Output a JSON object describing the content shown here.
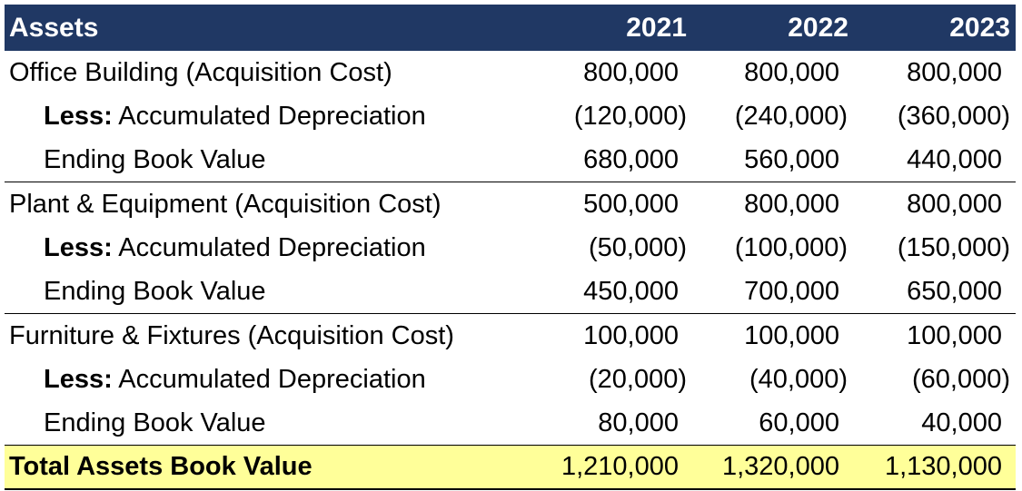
{
  "header": {
    "title": "Assets",
    "years": [
      "2021",
      "2022",
      "2023"
    ]
  },
  "groups": [
    {
      "name": "Office Building (Acquisition Cost)",
      "cost": [
        "800,000",
        "800,000",
        "800,000"
      ],
      "less_bold": "Less:",
      "less_label": "Accumulated Depreciation",
      "depreciation": [
        "(120,000)",
        "(240,000)",
        "(360,000)"
      ],
      "ending_label": "Ending Book Value",
      "ending": [
        "680,000",
        "560,000",
        "440,000"
      ]
    },
    {
      "name": "Plant & Equipment (Acquisition Cost)",
      "cost": [
        "500,000",
        "800,000",
        "800,000"
      ],
      "less_bold": "Less:",
      "less_label": "Accumulated Depreciation",
      "depreciation": [
        "(50,000)",
        "(100,000)",
        "(150,000)"
      ],
      "ending_label": "Ending Book Value",
      "ending": [
        "450,000",
        "700,000",
        "650,000"
      ]
    },
    {
      "name": "Furniture & Fixtures (Acquisition Cost)",
      "cost": [
        "100,000",
        "100,000",
        "100,000"
      ],
      "less_bold": "Less:",
      "less_label": "Accumulated Depreciation",
      "depreciation": [
        "(20,000)",
        "(40,000)",
        "(60,000)"
      ],
      "ending_label": "Ending Book Value",
      "ending": [
        "80,000",
        "60,000",
        "40,000"
      ]
    }
  ],
  "total": {
    "label": "Total Assets Book Value",
    "values": [
      "1,210,000",
      "1,320,000",
      "1,130,000"
    ]
  },
  "colors": {
    "header_bg": "#203864",
    "header_text": "#ffffff",
    "total_bg": "#ffff99"
  }
}
